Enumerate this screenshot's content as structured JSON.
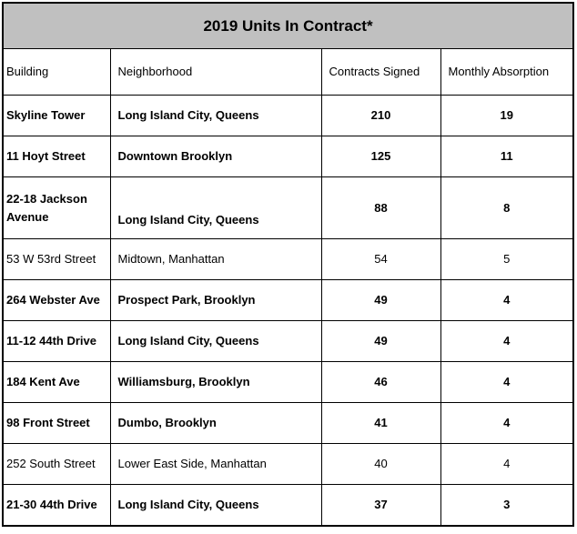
{
  "chart_data": {
    "type": "table",
    "title": "2019 Units In Contract*",
    "columns": [
      "Building",
      "Neighborhood",
      "Contracts Signed",
      "Monthly Absorption"
    ],
    "rows": [
      {
        "building": "Skyline Tower",
        "neighborhood": "Long Island City, Queens",
        "contracts_signed": 210,
        "monthly_absorption": 19,
        "bold": true
      },
      {
        "building": "11 Hoyt Street",
        "neighborhood": "Downtown Brooklyn",
        "contracts_signed": 125,
        "monthly_absorption": 11,
        "bold": true
      },
      {
        "building": "22-18 Jackson Avenue",
        "neighborhood": "Long Island City, Queens",
        "contracts_signed": 88,
        "monthly_absorption": 8,
        "bold": true
      },
      {
        "building": "53 W 53rd Street",
        "neighborhood": "Midtown, Manhattan",
        "contracts_signed": 54,
        "monthly_absorption": 5,
        "bold": false
      },
      {
        "building": "264 Webster Ave",
        "neighborhood": "Prospect Park, Brooklyn",
        "contracts_signed": 49,
        "monthly_absorption": 4,
        "bold": true
      },
      {
        "building": "11-12 44th Drive",
        "neighborhood": "Long Island City, Queens",
        "contracts_signed": 49,
        "monthly_absorption": 4,
        "bold": true
      },
      {
        "building": "184 Kent Ave",
        "neighborhood": "Williamsburg, Brooklyn",
        "contracts_signed": 46,
        "monthly_absorption": 4,
        "bold": true
      },
      {
        "building": "98 Front Street",
        "neighborhood": "Dumbo, Brooklyn",
        "contracts_signed": 41,
        "monthly_absorption": 4,
        "bold": true
      },
      {
        "building": "252 South Street",
        "neighborhood": "Lower East Side, Manhattan",
        "contracts_signed": 40,
        "monthly_absorption": 4,
        "bold": false
      },
      {
        "building": "21-30 44th Drive",
        "neighborhood": "Long Island City, Queens",
        "contracts_signed": 37,
        "monthly_absorption": 3,
        "bold": true
      }
    ]
  },
  "colors": {
    "title_bg": "#c0c0c0",
    "border": "#000000",
    "text": "#000000"
  }
}
